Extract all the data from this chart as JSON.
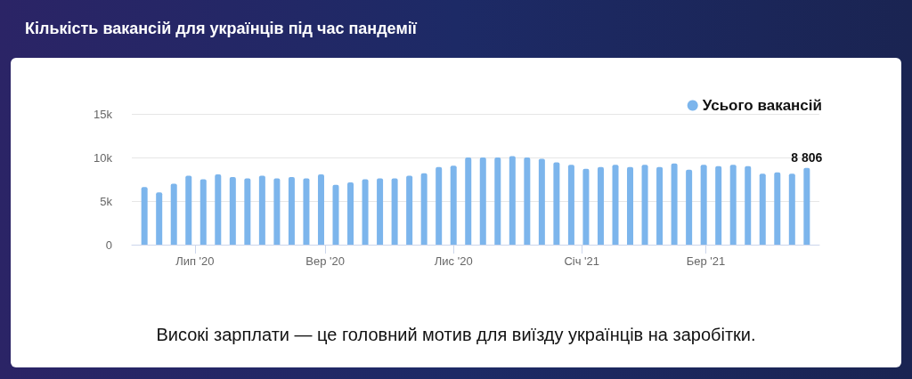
{
  "chart_data": {
    "type": "bar",
    "title": "Кількість вакансій для українців під час пандемії",
    "annotations": [
      "Високі зарплати — це головний мотив для виїзду українців на заробітки."
    ],
    "x": [
      "2020-06-07",
      "2020-06-14",
      "2020-06-21",
      "2020-06-28",
      "2020-07-05",
      "2020-07-12",
      "2020-07-19",
      "2020-07-26",
      "2020-08-02",
      "2020-08-09",
      "2020-08-16",
      "2020-08-23",
      "2020-08-30",
      "2020-09-06",
      "2020-09-13",
      "2020-09-20",
      "2020-09-27",
      "2020-10-04",
      "2020-10-11",
      "2020-10-18",
      "2020-10-25",
      "2020-11-01",
      "2020-11-08",
      "2020-11-15",
      "2020-11-22",
      "2020-11-29",
      "2020-12-06",
      "2020-12-13",
      "2020-12-20",
      "2020-12-27",
      "2021-01-03",
      "2021-01-10",
      "2021-01-17",
      "2021-01-24",
      "2021-01-31",
      "2021-02-07",
      "2021-02-14",
      "2021-02-21",
      "2021-02-28",
      "2021-03-07",
      "2021-03-14",
      "2021-03-21",
      "2021-03-28",
      "2021-04-04",
      "2021-04-11",
      "2021-04-18"
    ],
    "series": [
      {
        "name": "Усього вакансій",
        "color": "#7cb5ec",
        "values": [
          6600,
          6000,
          7000,
          7900,
          7500,
          8050,
          7750,
          7600,
          7900,
          7600,
          7750,
          7600,
          8050,
          6850,
          7150,
          7500,
          7600,
          7600,
          7900,
          8200,
          8900,
          9050,
          10000,
          10000,
          10000,
          10150,
          10000,
          9850,
          9450,
          9150,
          8700,
          8900,
          9150,
          8900,
          9150,
          8900,
          9300,
          8600,
          9150,
          9000,
          9150,
          9000,
          8150,
          8300,
          8150,
          8806
        ],
        "value_labels": [
          null,
          null,
          null,
          null,
          null,
          null,
          null,
          null,
          null,
          null,
          null,
          null,
          null,
          null,
          null,
          null,
          null,
          null,
          null,
          null,
          null,
          null,
          null,
          null,
          null,
          null,
          null,
          null,
          null,
          null,
          null,
          null,
          null,
          null,
          null,
          null,
          null,
          null,
          null,
          null,
          null,
          null,
          null,
          null,
          null,
          "8 806"
        ]
      }
    ],
    "xlim": [
      "2020-06-01",
      "2021-04-24"
    ],
    "xticks": [
      {
        "value": "2020-07-01",
        "label": "Лип '20"
      },
      {
        "value": "2020-09-01",
        "label": "Вер '20"
      },
      {
        "value": "2020-11-01",
        "label": "Лис '20"
      },
      {
        "value": "2021-01-01",
        "label": "Січ '21"
      },
      {
        "value": "2021-03-01",
        "label": "Бер '21"
      }
    ],
    "ylim": [
      0,
      15000
    ],
    "yticks": [
      0,
      {
        "value": 5000,
        "label": "5k"
      },
      {
        "value": 10000,
        "label": "10k"
      },
      {
        "value": 15000,
        "label": "15k"
      }
    ],
    "grid": "y",
    "legend": "top right",
    "marker": "circle"
  }
}
